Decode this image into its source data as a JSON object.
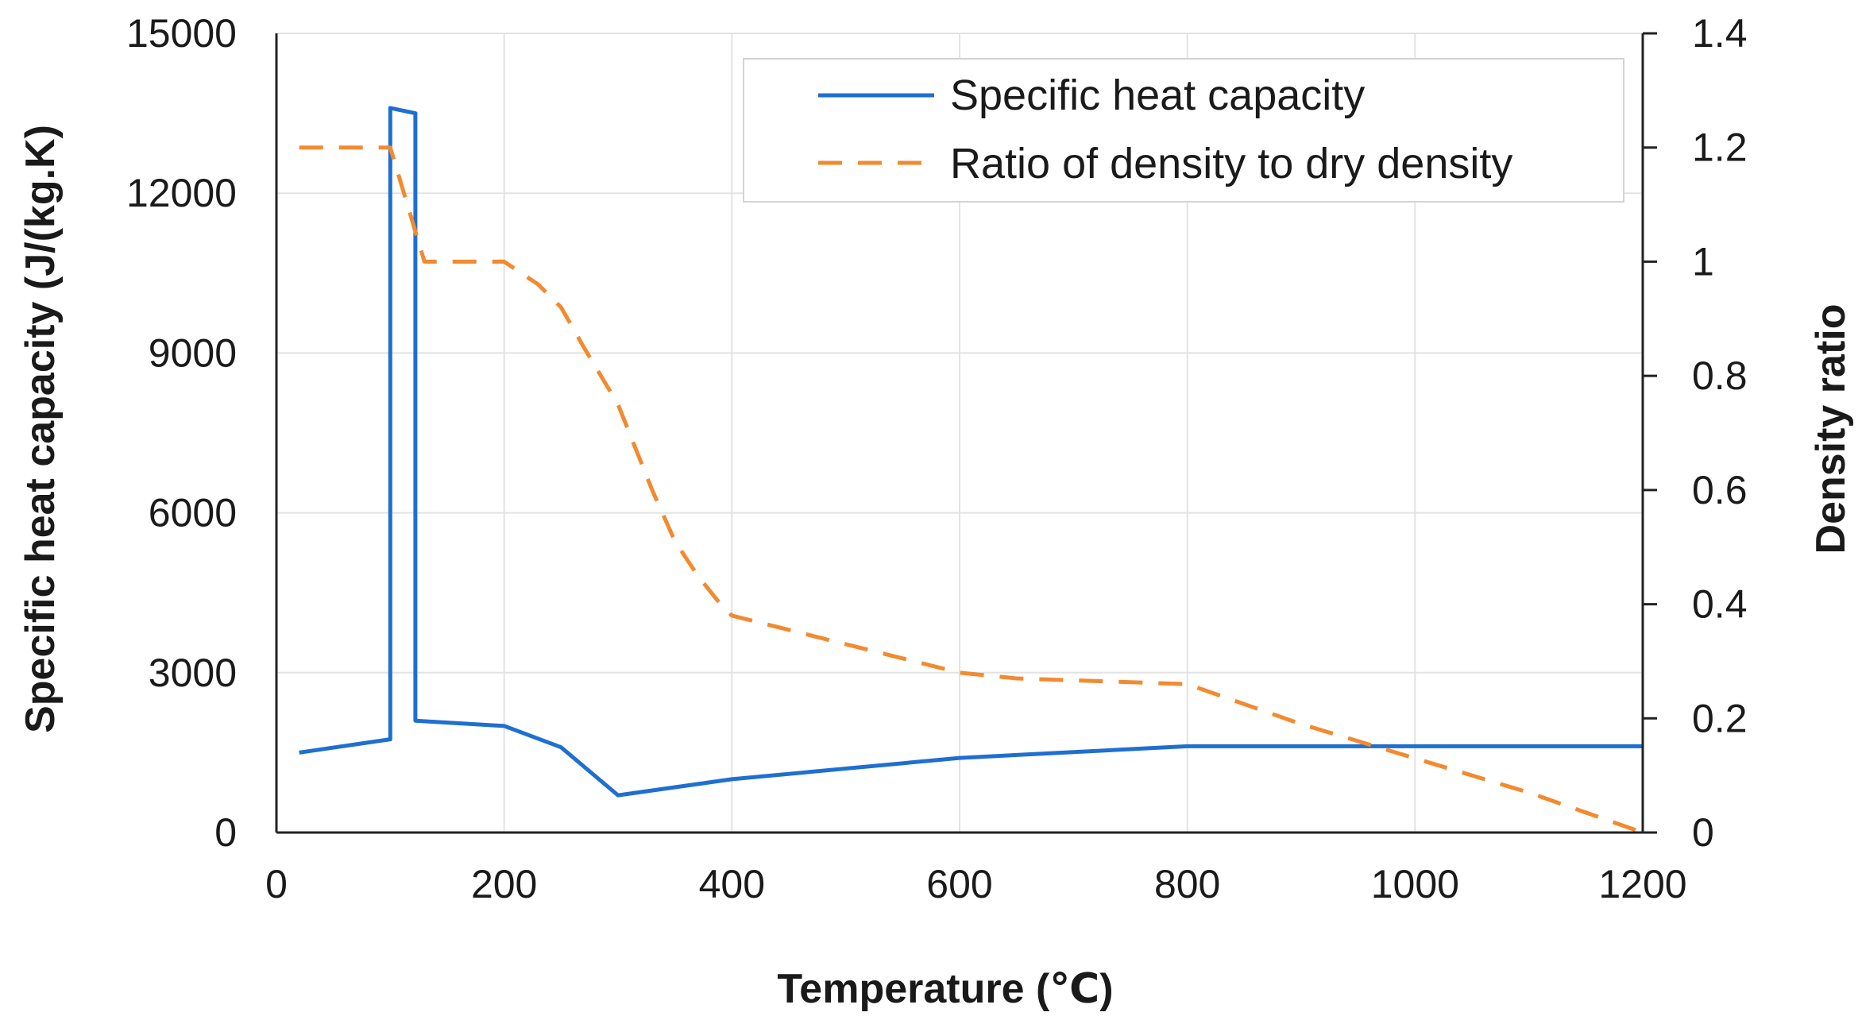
{
  "chart_data": {
    "type": "line",
    "title": "",
    "xlabel": "Temperature (℃)",
    "ylabel": "Specific heat capacity (J/(kg.K)",
    "y2label": "Density ratio",
    "xlim": [
      0,
      1200
    ],
    "ylim": [
      0,
      15000
    ],
    "y2lim": [
      0,
      1.4
    ],
    "x_ticks": [
      "0",
      "200",
      "400",
      "600",
      "800",
      "1000",
      "1200"
    ],
    "y_ticks": [
      "0",
      "3000",
      "6000",
      "9000",
      "12000",
      "15000"
    ],
    "y2_ticks": [
      "0",
      "0.2",
      "0.4",
      "0.6",
      "0.8",
      "1",
      "1.2",
      "1.4"
    ],
    "grid": true,
    "legend_position": "top-right",
    "series": [
      {
        "name": "Specific heat capacity",
        "axis": "left",
        "style": "solid",
        "color": "#1F6FD1",
        "x": [
          20,
          100,
          100,
          122,
          122,
          200,
          250,
          300,
          400,
          600,
          800,
          1000,
          1200
        ],
        "y": [
          1500,
          1750,
          13600,
          13500,
          2100,
          2000,
          1600,
          700,
          1000,
          1400,
          1620,
          1620,
          1620
        ]
      },
      {
        "name": "Ratio of density to dry density",
        "axis": "right",
        "style": "dashed",
        "color": "#F28A30",
        "x": [
          20,
          100,
          115,
          130,
          200,
          230,
          250,
          270,
          300,
          330,
          350,
          370,
          390,
          400,
          500,
          600,
          650,
          800,
          900,
          1000,
          1100,
          1200
        ],
        "y": [
          1.2,
          1.2,
          1.1,
          1.0,
          1.0,
          0.96,
          0.92,
          0.85,
          0.75,
          0.6,
          0.51,
          0.45,
          0.4,
          0.38,
          0.33,
          0.28,
          0.27,
          0.26,
          0.19,
          0.13,
          0.07,
          0.0
        ]
      }
    ]
  }
}
